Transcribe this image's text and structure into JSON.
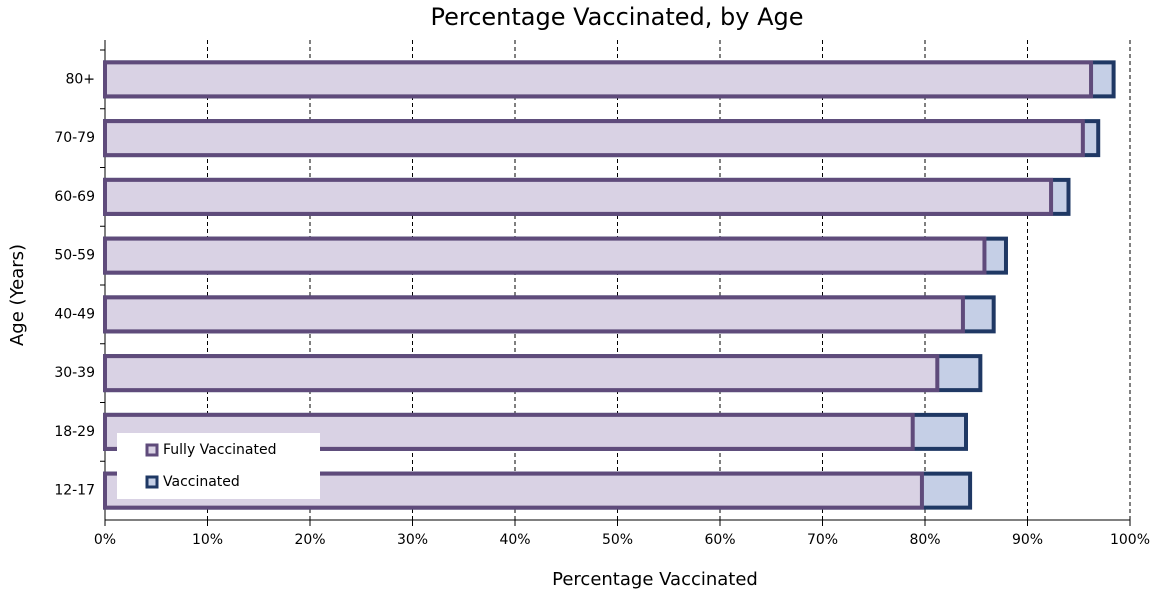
{
  "chart_data": {
    "type": "bar",
    "orientation": "horizontal",
    "overlap": true,
    "title": "Percentage Vaccinated, by Age",
    "x_label": "Percentage Vaccinated",
    "y_label": "Age (Years)",
    "categories": [
      "80+",
      "70-79",
      "60-69",
      "50-59",
      "40-49",
      "30-39",
      "18-29",
      "12-17"
    ],
    "series": [
      {
        "name": "Fully Vaccinated",
        "color": "#d9d2e4",
        "edge_color": "#5f4b7b",
        "values": [
          96.2,
          95.4,
          92.3,
          85.8,
          83.7,
          81.2,
          78.8,
          79.7
        ]
      },
      {
        "name": "Vaccinated",
        "color": "#c5cfe6",
        "edge_color": "#1f3864",
        "values": [
          98.4,
          96.9,
          94.0,
          87.9,
          86.7,
          85.4,
          84.0,
          84.4
        ]
      }
    ],
    "xlim": [
      0,
      100
    ],
    "xticks": [
      {
        "value": 0,
        "label": "0%"
      },
      {
        "value": 10,
        "label": "10%"
      },
      {
        "value": 20,
        "label": "20%"
      },
      {
        "value": 30,
        "label": "30%"
      },
      {
        "value": 40,
        "label": "40%"
      },
      {
        "value": 50,
        "label": "50%"
      },
      {
        "value": 60,
        "label": "60%"
      },
      {
        "value": 70,
        "label": "70%"
      },
      {
        "value": 80,
        "label": "80%"
      },
      {
        "value": 90,
        "label": "90%"
      },
      {
        "value": 100,
        "label": "100%"
      }
    ],
    "grid": true,
    "legend": "lower-left"
  }
}
